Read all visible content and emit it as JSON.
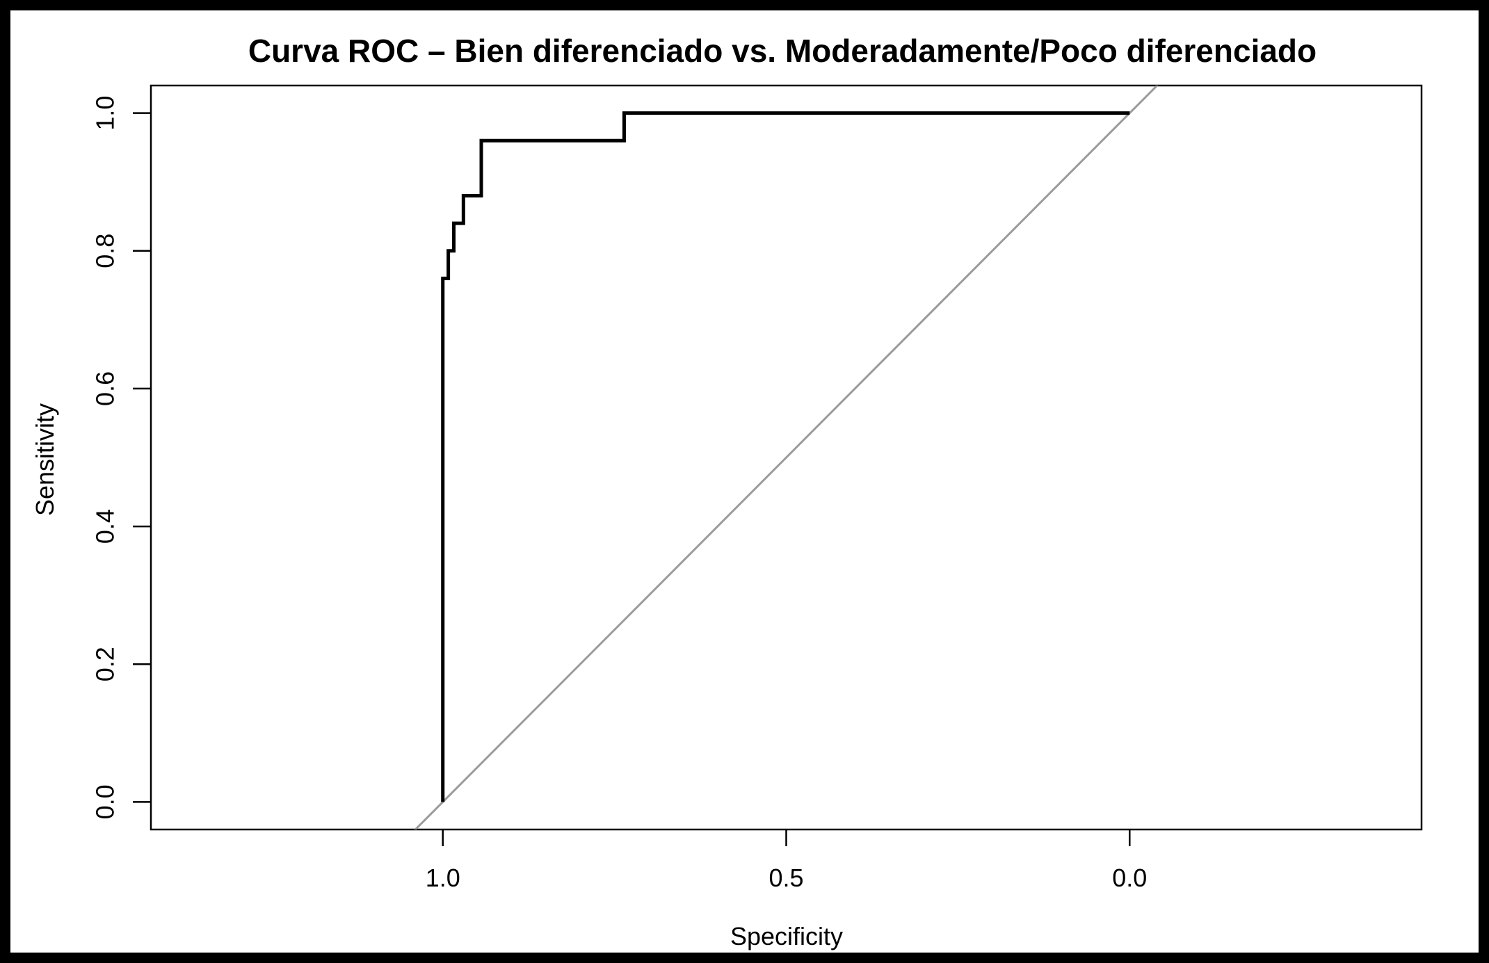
{
  "window": {
    "background_color": "#ffffff",
    "frame_color": "#000000"
  },
  "chart_data": {
    "type": "line",
    "subtype": "roc-curve",
    "title": "Curva ROC – Bien diferenciado vs. Moderadamente/Poco diferenciado",
    "xlabel": "Specificity",
    "ylabel": "Sensitivity",
    "grid": false,
    "legend": "none",
    "x_axis_reversed": true,
    "xlim": [
      1.425,
      -0.425
    ],
    "ylim": [
      -0.04,
      1.04
    ],
    "x_ticks": [
      {
        "value": 1.0,
        "label": "1.0"
      },
      {
        "value": 0.5,
        "label": "0.5"
      },
      {
        "value": 0.0,
        "label": "0.0"
      }
    ],
    "y_ticks": [
      {
        "value": 0.0,
        "label": "0.0"
      },
      {
        "value": 0.2,
        "label": "0.2"
      },
      {
        "value": 0.4,
        "label": "0.4"
      },
      {
        "value": 0.6,
        "label": "0.6"
      },
      {
        "value": 0.8,
        "label": "0.8"
      },
      {
        "value": 1.0,
        "label": "1.0"
      }
    ],
    "series": [
      {
        "name": "ROC curve: Bien diferenciado vs. Moderadamente/Poco diferenciado",
        "role": "roc-step-curve",
        "color": "#000000",
        "line_width": 5,
        "point_format": "[specificity, sensitivity]",
        "points": [
          [
            1.0,
            0.0
          ],
          [
            1.0,
            0.76
          ],
          [
            0.992,
            0.76
          ],
          [
            0.992,
            0.8
          ],
          [
            0.984,
            0.8
          ],
          [
            0.984,
            0.84
          ],
          [
            0.97,
            0.84
          ],
          [
            0.97,
            0.88
          ],
          [
            0.944,
            0.88
          ],
          [
            0.944,
            0.96
          ],
          [
            0.736,
            0.96
          ],
          [
            0.736,
            1.0
          ],
          [
            0.0,
            1.0
          ]
        ]
      },
      {
        "name": "Chance reference diagonal",
        "role": "reference-diagonal",
        "color": "#9b9b9b",
        "line_width": 3,
        "point_format": "[specificity, sensitivity]",
        "points": [
          [
            1.0,
            0.0
          ],
          [
            0.0,
            1.0
          ]
        ],
        "extend_to_plot_edges": true
      }
    ]
  }
}
